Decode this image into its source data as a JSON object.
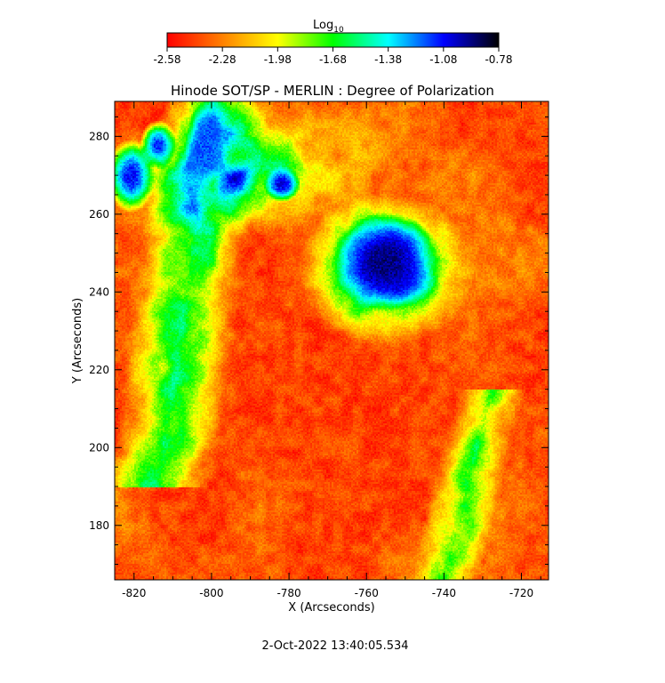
{
  "chart_data": {
    "type": "heatmap",
    "title": "Hinode SOT/SP - MERLIN : Degree of Polarization",
    "xlabel": "X (Arcseconds)",
    "ylabel": "Y (Arcseconds)",
    "xlim": [
      -825,
      -713
    ],
    "ylim": [
      166,
      289
    ],
    "x_ticks": [
      -820,
      -800,
      -780,
      -760,
      -740,
      -720
    ],
    "y_ticks": [
      180,
      200,
      220,
      240,
      260,
      280
    ],
    "colorbar": {
      "label_base": "Log",
      "label_subscript": "10",
      "range": [
        -2.58,
        -0.78
      ],
      "ticks": [
        "-2.58",
        "-2.28",
        "-1.98",
        "-1.68",
        "-1.38",
        "-1.08",
        "-0.78"
      ],
      "colors": [
        "#ff0000",
        "#ff8000",
        "#ffff00",
        "#00ff00",
        "#00ffff",
        "#0000ff",
        "#000000"
      ]
    },
    "features": [
      {
        "kind": "sunspot",
        "x": -755,
        "y": 248,
        "rx": 9,
        "ry": 8,
        "peak": -0.85
      },
      {
        "kind": "pore",
        "x": -821,
        "y": 270,
        "rx": 4,
        "ry": 6,
        "peak": -1.0
      },
      {
        "kind": "pore",
        "x": -814,
        "y": 278,
        "rx": 3,
        "ry": 4,
        "peak": -1.05
      },
      {
        "kind": "pore",
        "x": -802,
        "y": 278,
        "rx": 3,
        "ry": 7,
        "peak": -1.1
      },
      {
        "kind": "pore",
        "x": -782,
        "y": 268,
        "rx": 3,
        "ry": 3,
        "peak": -0.95
      }
    ],
    "timestamp": "2-Oct-2022 13:40:05.534"
  }
}
